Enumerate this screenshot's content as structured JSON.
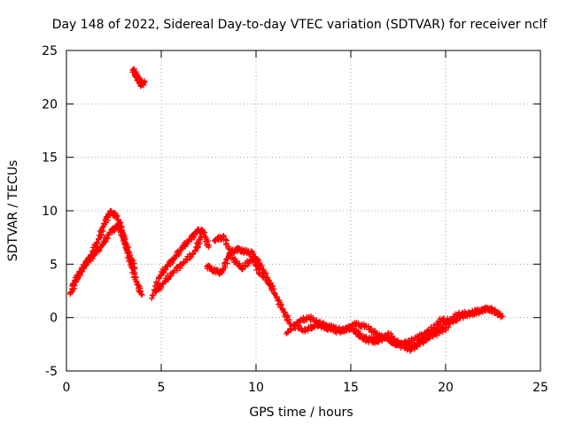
{
  "chart_data": {
    "type": "scatter",
    "title": "Day 148 of 2022, Sidereal Day-to-day VTEC variation (SDTVAR) for receiver nclf",
    "xlabel": "GPS time / hours",
    "ylabel": "SDTVAR / TECUs",
    "xlim": [
      0,
      25
    ],
    "ylim": [
      -5,
      25
    ],
    "xticks": [
      "0",
      "5",
      "10",
      "15",
      "20",
      "25"
    ],
    "yticks": [
      "-5",
      "0",
      "5",
      "10",
      "15",
      "20",
      "25"
    ],
    "grid": true,
    "color": "#ff0000",
    "marker": "plus",
    "series": [
      {
        "name": "outlier-cluster",
        "x": [
          3.5,
          3.65,
          3.8,
          3.95,
          4.1
        ],
        "y": [
          23.2,
          22.8,
          22.3,
          21.8,
          22.0
        ]
      },
      {
        "name": "track-1",
        "x": [
          0.2,
          0.5,
          0.9,
          1.3,
          1.7,
          2.0,
          2.3,
          2.6,
          2.9,
          3.1,
          3.4,
          3.7,
          3.95
        ],
        "y": [
          2.2,
          3.4,
          4.7,
          5.9,
          7.3,
          8.8,
          9.9,
          9.6,
          8.4,
          6.8,
          5.0,
          3.3,
          2.2
        ]
      },
      {
        "name": "track-2",
        "x": [
          0.3,
          0.7,
          1.1,
          1.5,
          1.9,
          2.3,
          2.7,
          3.0,
          3.3,
          3.6
        ],
        "y": [
          3.0,
          4.2,
          5.2,
          6.0,
          6.8,
          8.0,
          8.6,
          7.6,
          6.0,
          4.6
        ]
      },
      {
        "name": "track-3",
        "x": [
          4.5,
          4.9,
          5.3,
          5.7,
          6.1,
          6.5,
          6.9,
          7.2,
          7.5
        ],
        "y": [
          1.8,
          3.8,
          4.8,
          5.6,
          6.5,
          7.3,
          8.1,
          8.1,
          6.6
        ]
      },
      {
        "name": "track-4",
        "x": [
          4.7,
          5.1,
          5.6,
          6.2,
          6.8,
          7.1
        ],
        "y": [
          2.4,
          3.2,
          4.2,
          5.2,
          6.2,
          7.6
        ]
      },
      {
        "name": "track-5",
        "x": [
          7.4,
          7.8,
          8.2,
          8.6,
          9.0,
          9.4,
          9.8,
          10.2,
          10.6,
          11.0,
          11.4,
          11.8
        ],
        "y": [
          4.8,
          4.4,
          4.2,
          6.0,
          6.4,
          6.2,
          6.0,
          5.0,
          3.6,
          2.2,
          0.8,
          -0.6
        ]
      },
      {
        "name": "track-6",
        "x": [
          7.8,
          8.3,
          8.8,
          9.3,
          9.8,
          10.2,
          10.8
        ],
        "y": [
          7.2,
          7.6,
          5.4,
          4.6,
          5.6,
          4.2,
          3.0
        ]
      },
      {
        "name": "track-7",
        "x": [
          11.6,
          12.2,
          12.8,
          13.4,
          14.0,
          14.6,
          15.2,
          15.8,
          16.4,
          17.0,
          17.6,
          18.2,
          18.8,
          19.4,
          20.0,
          20.6,
          21.2,
          21.8,
          22.4,
          23.0
        ],
        "y": [
          -1.5,
          -0.4,
          0.0,
          -0.6,
          -0.9,
          -1.2,
          -0.6,
          -0.8,
          -1.6,
          -2.0,
          -2.4,
          -2.8,
          -2.2,
          -1.6,
          -1.0,
          0.3,
          0.4,
          0.7,
          0.8,
          0.1
        ]
      },
      {
        "name": "track-8",
        "x": [
          12.0,
          12.6,
          13.2,
          13.8,
          14.4,
          15.0,
          15.6,
          16.2,
          16.8,
          17.4,
          18.0,
          18.6,
          19.2,
          19.8,
          20.4,
          21.0,
          21.6,
          22.2,
          22.8
        ],
        "y": [
          -0.8,
          -1.2,
          -0.7,
          -1.0,
          -1.3,
          -1.0,
          -1.9,
          -2.0,
          -1.8,
          -2.6,
          -2.3,
          -1.8,
          -1.2,
          -0.2,
          -0.3,
          0.2,
          0.4,
          0.9,
          0.3
        ]
      },
      {
        "name": "track-9",
        "x": [
          15.2,
          15.8,
          16.4,
          17.0,
          17.6,
          18.2,
          18.8,
          19.4,
          20.0
        ],
        "y": [
          -1.2,
          -2.1,
          -2.3,
          -1.5,
          -2.6,
          -3.0,
          -2.0,
          -1.4,
          -0.6
        ]
      }
    ]
  }
}
